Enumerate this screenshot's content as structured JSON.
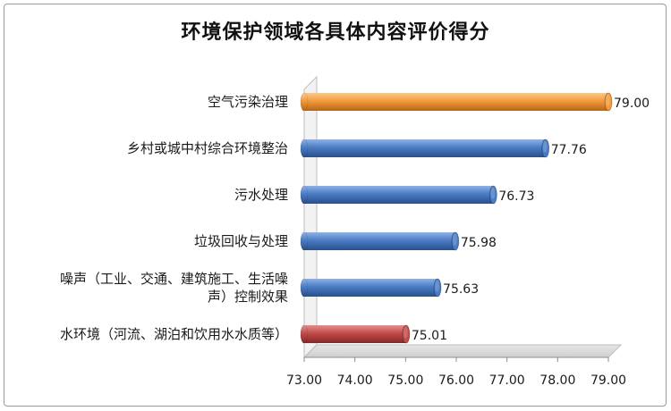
{
  "chart_data": {
    "type": "bar",
    "orientation": "horizontal",
    "title": "环境保护领域各具体内容评价得分",
    "categories": [
      "空气污染治理",
      "乡村或城中村综合环境整治",
      "污水处理",
      "垃圾回收与处理",
      "噪声（工业、交通、建筑施工、生活噪声）控制效果",
      "水环境（河流、湖泊和饮用水水质等）"
    ],
    "category_lines": [
      [
        "空气污染治理"
      ],
      [
        "乡村或城中村综合环境整治"
      ],
      [
        "污水处理"
      ],
      [
        "垃圾回收与处理"
      ],
      [
        "噪声（工业、交通、建筑施工、生活噪",
        "声）控制效果"
      ],
      [
        "水环境（河流、湖泊和饮用水水质等）"
      ]
    ],
    "values": [
      79.0,
      77.76,
      76.73,
      75.98,
      75.63,
      75.01
    ],
    "value_labels": [
      "79.00",
      "77.76",
      "76.73",
      "75.98",
      "75.63",
      "75.01"
    ],
    "bar_colors": [
      "#F39A3C",
      "#4A7CC4",
      "#4A7CC4",
      "#4A7CC4",
      "#4A7CC4",
      "#C24B4B"
    ],
    "xlim": [
      73.0,
      79.0
    ],
    "xticks": [
      "73.00",
      "74.00",
      "75.00",
      "76.00",
      "77.00",
      "78.00",
      "79.00"
    ],
    "xlabel": "",
    "ylabel": "",
    "grid": false,
    "legend": "none",
    "style": "3d-cylinder"
  }
}
